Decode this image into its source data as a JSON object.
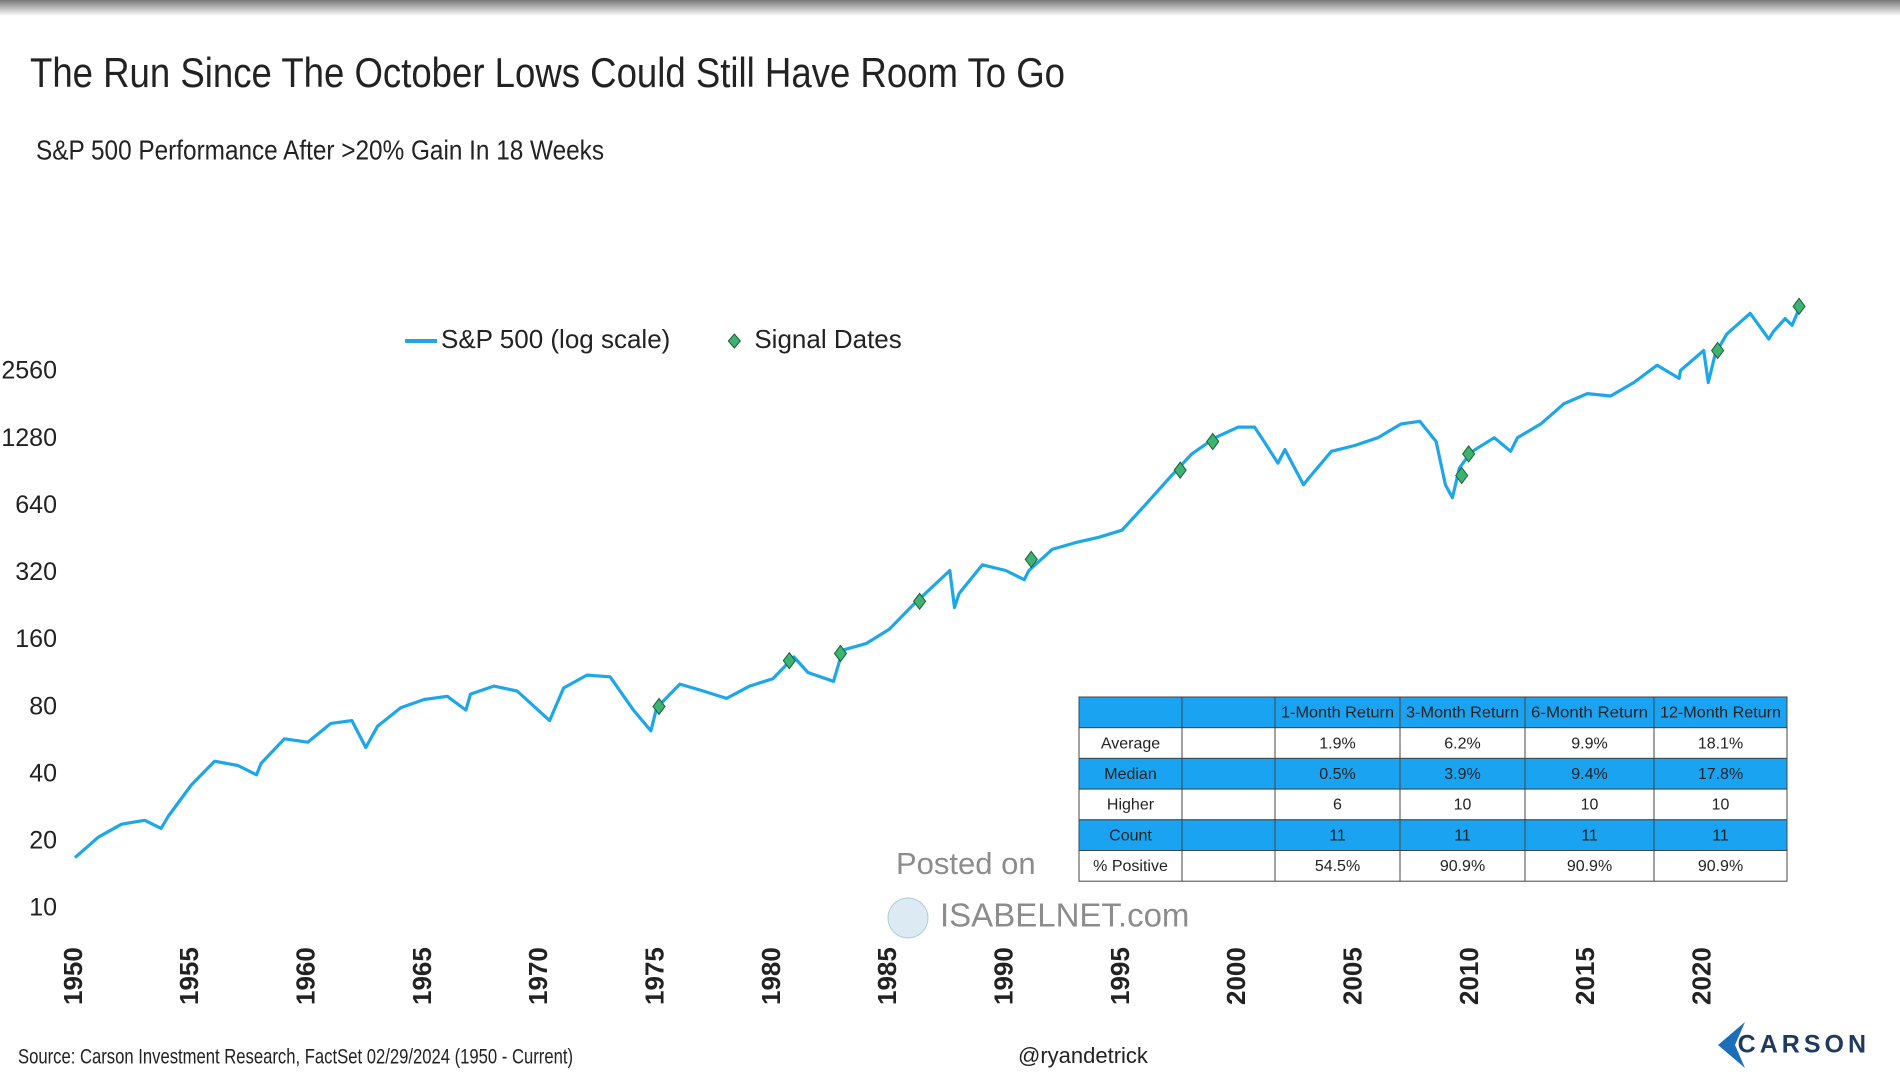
{
  "chart_data": {
    "type": "line",
    "title": "The Run Since The October Lows Could Still Have Room To Go",
    "subtitle": "S&P 500 Performance After >20% Gain In 18 Weeks",
    "yscale": "log",
    "xlim": [
      1950,
      2025
    ],
    "xticks": [
      1950,
      1955,
      1960,
      1965,
      1970,
      1975,
      1980,
      1985,
      1990,
      1995,
      2000,
      2005,
      2010,
      2015,
      2020
    ],
    "ylim": [
      10,
      5120
    ],
    "yticks": [
      10,
      20,
      40,
      80,
      160,
      320,
      640,
      1280,
      2560
    ],
    "grid": false,
    "legend": "top",
    "series": [
      {
        "name": "S&P 500 (log scale)",
        "type": "line",
        "color": "#1ea7e8",
        "x": [
          1950,
          1951,
          1952,
          1953,
          1953.7,
          1954,
          1955,
          1956,
          1957,
          1957.8,
          1958,
          1959,
          1960,
          1961,
          1961.9,
          1962.5,
          1963,
          1964,
          1965,
          1966,
          1966.8,
          1967,
          1968,
          1969,
          1970.4,
          1971,
          1972,
          1973,
          1974,
          1974.75,
          1975,
          1976,
          1977,
          1978,
          1979,
          1980,
          1980.9,
          1981.5,
          1982.6,
          1983,
          1984,
          1985,
          1986,
          1987.6,
          1987.8,
          1988,
          1989,
          1990,
          1990.8,
          1991,
          1992,
          1993,
          1994,
          1995,
          1996,
          1997,
          1998,
          1999,
          2000,
          2000.7,
          2001,
          2001.7,
          2002,
          2002.8,
          2003,
          2004,
          2005,
          2006,
          2007,
          2007.8,
          2008.5,
          2008.9,
          2009.2,
          2009.5,
          2010,
          2011,
          2011.7,
          2012,
          2013,
          2014,
          2015,
          2016,
          2017,
          2018,
          2018.95,
          2019,
          2020,
          2020.2,
          2020.5,
          2021,
          2022,
          2022.8,
          2023,
          2023.5,
          2023.8,
          2024.16
        ],
        "values": [
          17,
          21,
          24,
          25,
          23,
          26,
          36,
          46,
          44,
          40,
          45,
          58,
          56,
          68,
          70,
          53,
          66,
          80,
          87,
          90,
          78,
          92,
          100,
          95,
          70,
          98,
          112,
          110,
          78,
          63,
          80,
          102,
          95,
          88,
          100,
          108,
          135,
          115,
          105,
          145,
          155,
          180,
          230,
          330,
          225,
          260,
          350,
          330,
          300,
          330,
          410,
          440,
          465,
          500,
          650,
          850,
          1100,
          1300,
          1450,
          1450,
          1300,
          1000,
          1150,
          800,
          850,
          1130,
          1200,
          1300,
          1500,
          1540,
          1250,
          800,
          700,
          950,
          1120,
          1300,
          1130,
          1300,
          1500,
          1850,
          2050,
          2000,
          2300,
          2750,
          2400,
          2600,
          3200,
          2300,
          3100,
          3800,
          4700,
          3600,
          3900,
          4450,
          4150,
          5100
        ]
      },
      {
        "name": "Signal Dates",
        "type": "scatter",
        "color": "#3cb371",
        "x": [
          1975.1,
          1980.7,
          1982.9,
          1986.3,
          1991.1,
          1997.5,
          1998.9,
          2009.6,
          2009.9,
          2020.6,
          2024.1
        ],
        "values": [
          81,
          130,
          140,
          240,
          370,
          930,
          1250,
          880,
          1100,
          3200,
          5050
        ]
      }
    ]
  },
  "table": {
    "columns": [
      "1-Month Return",
      "3-Month Return",
      "6-Month Return",
      "12-Month Return"
    ],
    "rows": [
      [
        "Average",
        "1.9%",
        "6.2%",
        "9.9%",
        "18.1%"
      ],
      [
        "Median",
        "0.5%",
        "3.9%",
        "9.4%",
        "17.8%"
      ],
      [
        "Higher",
        "6",
        "10",
        "10",
        "10"
      ],
      [
        "Count",
        "11",
        "11",
        "11",
        "11"
      ],
      [
        "% Positive",
        "54.5%",
        "90.9%",
        "90.9%",
        "90.9%"
      ]
    ]
  },
  "watermark": {
    "line1": "Posted on",
    "line2": "ISABELNET.com"
  },
  "footer": {
    "source": "Source: Carson Investment Research, FactSet 02/29/2024 (1950 - Current)",
    "handle": "@ryandetrick",
    "brand": "CARSON"
  }
}
